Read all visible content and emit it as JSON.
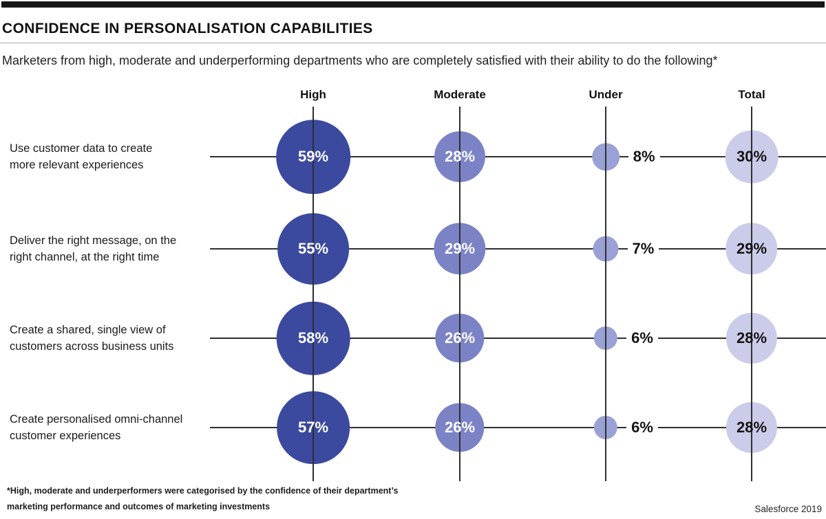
{
  "header": {
    "title": "CONFIDENCE IN PERSONALISATION CAPABILITIES",
    "subtitle": "Marketers from high, moderate and underperforming departments who are completely satisfied with their ability to do the following*"
  },
  "chart_data": {
    "type": "scatter",
    "subtype": "bubble-matrix",
    "title": "CONFIDENCE IN PERSONALISATION CAPABILITIES",
    "columns": [
      "High",
      "Moderate",
      "Under",
      "Total"
    ],
    "rows": [
      {
        "label_lines": [
          "Use customer data to create",
          "more relevant experiences"
        ],
        "values": [
          59,
          28,
          8,
          30
        ]
      },
      {
        "label_lines": [
          "Deliver the right message, on the",
          "right channel, at the right time"
        ],
        "values": [
          55,
          29,
          7,
          29
        ]
      },
      {
        "label_lines": [
          "Create a shared, single view of",
          "customers across business units"
        ],
        "values": [
          58,
          26,
          6,
          28
        ]
      },
      {
        "label_lines": [
          "Create personalised omni-channel",
          "customer experiences"
        ],
        "values": [
          57,
          26,
          6,
          28
        ]
      }
    ],
    "value_format": "percent",
    "legend_position": "none",
    "grid": "crosshair-lines",
    "column_bubble_colors": [
      "#3b4a9f",
      "#7b83c6",
      "#9aa1d5",
      "#cacce9"
    ],
    "column_value_colors": [
      "#ffffff",
      "#ffffff",
      "#141414",
      "#141414"
    ],
    "column_value_placement": [
      "inside",
      "inside",
      "outside-right",
      "inside"
    ]
  },
  "footer": {
    "footnote_line1": "*High, moderate and underperformers were categorised by the confidence of their department’s",
    "footnote_line2": "marketing performance and outcomes of marketing investments",
    "source": "Salesforce 2019"
  }
}
